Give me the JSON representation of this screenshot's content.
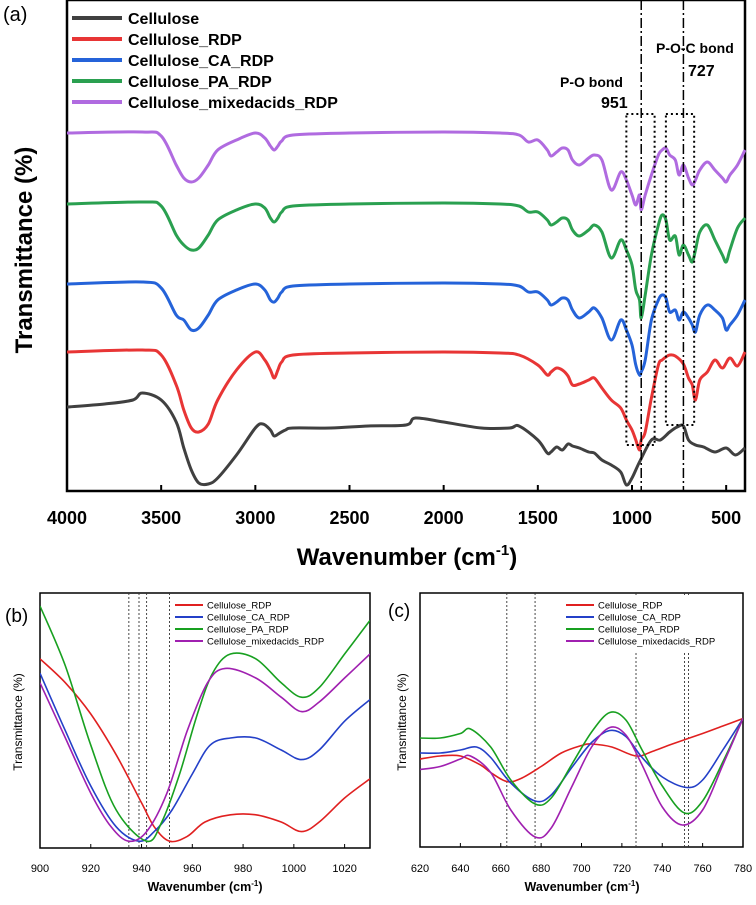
{
  "figure": {
    "panels": [
      {
        "id": "a",
        "label": "(a)",
        "xlabel": "Wavenumber (cm",
        "xlabel_sup": "-1",
        "xlabel_end": ")",
        "ylabel": "Transmittance (%)",
        "x_ticks": [
          4000,
          3500,
          3000,
          2500,
          2000,
          1500,
          1000,
          500
        ],
        "xlim": [
          4000,
          400
        ],
        "annotations": [
          {
            "line1": "P-O bond",
            "line2": "951",
            "x": 951
          },
          {
            "line1": "P-O-C bond",
            "line2": "727",
            "x": 727
          }
        ],
        "boxes": [
          {
            "x_from": 1030,
            "x_to": 880
          },
          {
            "x_from": 820,
            "x_to": 670
          }
        ],
        "legend": [
          "Cellulose",
          "Cellulose_RDP",
          "Cellulose_CA_RDP",
          "Cellulose_PA_RDP",
          "Cellulose_mixedacids_RDP"
        ]
      },
      {
        "id": "b",
        "label": "(b)",
        "xlabel": "Wavenumber (cm",
        "xlabel_sup": "-1",
        "xlabel_end": ")",
        "ylabel": "Transmittance (%)",
        "x_ticks": [
          900,
          920,
          940,
          960,
          980,
          1000,
          1020
        ],
        "xlim": [
          900,
          1030
        ],
        "ref_lines": [
          935,
          939,
          942,
          951
        ],
        "legend": [
          "Cellulose_RDP",
          "Cellulose_CA_RDP",
          "Cellulose_PA_RDP",
          "Cellulose_mixedacids_RDP"
        ]
      },
      {
        "id": "c",
        "label": "(c)",
        "xlabel": "Wavenumber (cm",
        "xlabel_sup": "-1",
        "xlabel_end": ")",
        "ylabel": "Transmittance (%)",
        "x_ticks": [
          620,
          640,
          660,
          680,
          700,
          720,
          740,
          760,
          780
        ],
        "xlim": [
          620,
          780
        ],
        "ref_lines": [
          663,
          677,
          727,
          751,
          753
        ],
        "legend": [
          "Cellulose_RDP",
          "Cellulose_CA_RDP",
          "Cellulose_PA_RDP",
          "Cellulose_mixedacids_RDP"
        ]
      }
    ]
  },
  "chart_data": [
    {
      "type": "line",
      "panel": "a",
      "title": "",
      "xlabel": "Wavenumber (cm-1)",
      "ylabel": "Transmittance (%)",
      "xlim": [
        4000,
        400
      ],
      "series": [
        {
          "name": "Cellulose",
          "color": "#404040",
          "x": [
            4000,
            3800,
            3650,
            3600,
            3500,
            3420,
            3380,
            3340,
            3300,
            3250,
            3200,
            3100,
            3000,
            2960,
            2920,
            2900,
            2870,
            2840,
            2800,
            2600,
            2400,
            2200,
            2150,
            2000,
            1800,
            1650,
            1600,
            1500,
            1450,
            1430,
            1400,
            1370,
            1340,
            1316,
            1280,
            1230,
            1200,
            1160,
            1110,
            1060,
            1030,
            1000,
            960,
            897,
            850,
            800,
            760,
            727,
            700,
            663,
            620,
            560,
            500,
            450,
            400
          ],
          "y": [
            407,
            404,
            400,
            393,
            400,
            422,
            448,
            470,
            483,
            484,
            478,
            455,
            428,
            424,
            430,
            436,
            433,
            430,
            428,
            428,
            426,
            425,
            418,
            422,
            428,
            428,
            426,
            440,
            453,
            452,
            447,
            450,
            444,
            446,
            448,
            452,
            453,
            460,
            465,
            472,
            485,
            478,
            462,
            440,
            440,
            432,
            427,
            426,
            440,
            445,
            447,
            452,
            448,
            455,
            448
          ]
        },
        {
          "name": "Cellulose_RDP",
          "color": "#e83535",
          "x": [
            4000,
            3600,
            3500,
            3420,
            3380,
            3340,
            3300,
            3250,
            3200,
            3100,
            3000,
            2950,
            2920,
            2900,
            2880,
            2860,
            2800,
            2500,
            2000,
            1700,
            1600,
            1500,
            1450,
            1430,
            1400,
            1370,
            1340,
            1316,
            1280,
            1230,
            1200,
            1160,
            1110,
            1060,
            1030,
            1000,
            980,
            960,
            951,
            930,
            897,
            860,
            840,
            820,
            800,
            770,
            727,
            700,
            680,
            663,
            640,
            600,
            560,
            520,
            480,
            440,
            400
          ],
          "y": [
            352,
            350,
            355,
            385,
            410,
            428,
            432,
            424,
            400,
            370,
            352,
            360,
            370,
            378,
            370,
            362,
            355,
            353,
            352,
            353,
            355,
            365,
            375,
            372,
            368,
            370,
            376,
            385,
            384,
            380,
            378,
            388,
            400,
            408,
            420,
            430,
            440,
            450,
            440,
            432,
            398,
            365,
            360,
            357,
            355,
            356,
            364,
            378,
            385,
            400,
            380,
            372,
            360,
            368,
            358,
            366,
            352
          ]
        },
        {
          "name": "Cellulose_CA_RDP",
          "color": "#2563d9",
          "x": [
            4000,
            3600,
            3500,
            3420,
            3380,
            3340,
            3300,
            3250,
            3200,
            3100,
            3000,
            2950,
            2920,
            2900,
            2880,
            2860,
            2800,
            2500,
            2000,
            1700,
            1600,
            1550,
            1500,
            1450,
            1430,
            1400,
            1370,
            1340,
            1316,
            1280,
            1230,
            1200,
            1160,
            1110,
            1060,
            1030,
            1000,
            980,
            960,
            951,
            930,
            897,
            860,
            840,
            820,
            800,
            770,
            750,
            727,
            700,
            680,
            663,
            640,
            600,
            560,
            520,
            500,
            480,
            440,
            400
          ],
          "y": [
            284,
            282,
            288,
            315,
            320,
            330,
            328,
            315,
            300,
            290,
            284,
            290,
            300,
            302,
            298,
            292,
            286,
            284,
            283,
            284,
            286,
            292,
            292,
            300,
            305,
            302,
            298,
            300,
            310,
            318,
            312,
            308,
            318,
            340,
            320,
            330,
            345,
            365,
            375,
            372,
            360,
            320,
            300,
            295,
            298,
            312,
            310,
            320,
            312,
            318,
            325,
            332,
            315,
            305,
            310,
            318,
            330,
            325,
            315,
            300
          ]
        },
        {
          "name": "Cellulose_PA_RDP",
          "color": "#2aa050",
          "x": [
            4000,
            3600,
            3500,
            3420,
            3380,
            3340,
            3300,
            3250,
            3200,
            3100,
            3000,
            2950,
            2920,
            2900,
            2880,
            2860,
            2800,
            2500,
            2000,
            1700,
            1600,
            1550,
            1500,
            1450,
            1430,
            1400,
            1370,
            1340,
            1316,
            1280,
            1230,
            1200,
            1160,
            1110,
            1060,
            1030,
            1000,
            980,
            960,
            951,
            930,
            897,
            860,
            840,
            820,
            800,
            770,
            750,
            727,
            700,
            680,
            663,
            640,
            600,
            560,
            520,
            500,
            480,
            440,
            400
          ],
          "y": [
            204,
            202,
            206,
            235,
            245,
            250,
            248,
            235,
            220,
            210,
            204,
            208,
            218,
            222,
            218,
            212,
            206,
            204,
            203,
            204,
            206,
            212,
            212,
            220,
            225,
            222,
            218,
            220,
            230,
            236,
            230,
            225,
            232,
            258,
            240,
            250,
            265,
            290,
            300,
            318,
            295,
            255,
            225,
            215,
            220,
            240,
            236,
            255,
            245,
            255,
            262,
            250,
            232,
            225,
            240,
            255,
            262,
            250,
            228,
            218
          ]
        },
        {
          "name": "Cellulose_mixedacids_RDP",
          "color": "#b06be0",
          "x": [
            4000,
            3600,
            3500,
            3420,
            3380,
            3340,
            3300,
            3250,
            3200,
            3100,
            3000,
            2950,
            2920,
            2900,
            2880,
            2860,
            2800,
            2500,
            2000,
            1700,
            1600,
            1550,
            1500,
            1450,
            1430,
            1400,
            1370,
            1340,
            1316,
            1280,
            1230,
            1200,
            1160,
            1110,
            1060,
            1030,
            1000,
            980,
            960,
            951,
            930,
            897,
            860,
            840,
            820,
            800,
            770,
            750,
            727,
            700,
            680,
            663,
            640,
            600,
            560,
            520,
            500,
            480,
            440,
            400
          ],
          "y": [
            133,
            132,
            136,
            165,
            178,
            182,
            178,
            165,
            150,
            140,
            133,
            138,
            146,
            150,
            146,
            141,
            135,
            133,
            132,
            133,
            135,
            142,
            140,
            150,
            156,
            152,
            148,
            150,
            160,
            165,
            158,
            155,
            160,
            190,
            172,
            180,
            195,
            205,
            195,
            210,
            195,
            175,
            155,
            150,
            148,
            155,
            160,
            175,
            165,
            178,
            185,
            180,
            170,
            162,
            170,
            178,
            182,
            175,
            165,
            150
          ]
        }
      ]
    },
    {
      "type": "line",
      "panel": "b",
      "xlabel": "Wavenumber (cm-1)",
      "ylabel": "Transmittance (%)",
      "xlim": [
        900,
        1030
      ],
      "yrange_norm": [
        0,
        1
      ],
      "series": [
        {
          "name": "Cellulose_RDP",
          "color": "#e02020",
          "x": [
            900,
            910,
            920,
            930,
            940,
            945,
            951,
            958,
            965,
            975,
            985,
            995,
            1003,
            1010,
            1020,
            1030
          ],
          "y": [
            0.78,
            0.68,
            0.55,
            0.38,
            0.18,
            0.08,
            0.02,
            0.04,
            0.1,
            0.13,
            0.13,
            0.1,
            0.06,
            0.1,
            0.2,
            0.28
          ]
        },
        {
          "name": "Cellulose_CA_RDP",
          "color": "#2440c8",
          "x": [
            900,
            910,
            920,
            930,
            939,
            945,
            952,
            960,
            967,
            975,
            985,
            995,
            1003,
            1010,
            1020,
            1030
          ],
          "y": [
            0.72,
            0.48,
            0.25,
            0.08,
            0.02,
            0.06,
            0.15,
            0.3,
            0.42,
            0.45,
            0.45,
            0.4,
            0.36,
            0.4,
            0.52,
            0.61
          ]
        },
        {
          "name": "Cellulose_PA_RDP",
          "color": "#18a020",
          "x": [
            900,
            910,
            920,
            930,
            942,
            948,
            955,
            962,
            968,
            975,
            985,
            995,
            1003,
            1010,
            1020,
            1030
          ],
          "y": [
            1.0,
            0.75,
            0.42,
            0.15,
            0.02,
            0.1,
            0.3,
            0.55,
            0.72,
            0.8,
            0.78,
            0.68,
            0.62,
            0.66,
            0.8,
            0.94
          ]
        },
        {
          "name": "Cellulose_mixedacids_RDP",
          "color": "#a020b0",
          "x": [
            900,
            910,
            920,
            928,
            935,
            942,
            950,
            958,
            966,
            973,
            985,
            995,
            1003,
            1010,
            1020,
            1030
          ],
          "y": [
            0.68,
            0.45,
            0.22,
            0.08,
            0.02,
            0.06,
            0.22,
            0.48,
            0.68,
            0.74,
            0.7,
            0.62,
            0.56,
            0.6,
            0.7,
            0.8
          ]
        }
      ]
    },
    {
      "type": "line",
      "panel": "c",
      "xlabel": "Wavenumber (cm-1)",
      "ylabel": "Transmittance (%)",
      "xlim": [
        620,
        780
      ],
      "yrange_norm": [
        0,
        1
      ],
      "series": [
        {
          "name": "Cellulose_RDP",
          "color": "#e02020",
          "x": [
            620,
            630,
            640,
            650,
            655,
            663,
            670,
            680,
            690,
            700,
            705,
            715,
            727,
            735,
            745,
            760,
            770,
            780
          ],
          "y": [
            0.54,
            0.56,
            0.56,
            0.5,
            0.45,
            0.39,
            0.41,
            0.49,
            0.58,
            0.63,
            0.64,
            0.62,
            0.56,
            0.59,
            0.64,
            0.71,
            0.76,
            0.81
          ]
        },
        {
          "name": "Cellulose_CA_RDP",
          "color": "#2440c8",
          "x": [
            620,
            630,
            640,
            648,
            655,
            665,
            677,
            685,
            695,
            705,
            714,
            722,
            730,
            740,
            752,
            760,
            770,
            780
          ],
          "y": [
            0.58,
            0.58,
            0.6,
            0.62,
            0.55,
            0.38,
            0.26,
            0.3,
            0.48,
            0.65,
            0.73,
            0.69,
            0.55,
            0.42,
            0.35,
            0.4,
            0.6,
            0.81
          ]
        },
        {
          "name": "Cellulose_PA_RDP",
          "color": "#18a020",
          "x": [
            620,
            630,
            640,
            645,
            655,
            665,
            677,
            685,
            695,
            705,
            714,
            722,
            730,
            740,
            751,
            760,
            770,
            780
          ],
          "y": [
            0.68,
            0.68,
            0.71,
            0.74,
            0.62,
            0.4,
            0.24,
            0.28,
            0.5,
            0.72,
            0.85,
            0.8,
            0.6,
            0.36,
            0.18,
            0.26,
            0.52,
            0.81
          ]
        },
        {
          "name": "Cellulose_mixedacids_RDP",
          "color": "#a020b0",
          "x": [
            620,
            630,
            640,
            645,
            655,
            665,
            677,
            685,
            695,
            705,
            714,
            722,
            730,
            740,
            750,
            760,
            770,
            780
          ],
          "y": [
            0.47,
            0.49,
            0.54,
            0.56,
            0.45,
            0.2,
            0.02,
            0.08,
            0.35,
            0.62,
            0.75,
            0.7,
            0.5,
            0.22,
            0.1,
            0.2,
            0.5,
            0.81
          ]
        }
      ]
    }
  ]
}
